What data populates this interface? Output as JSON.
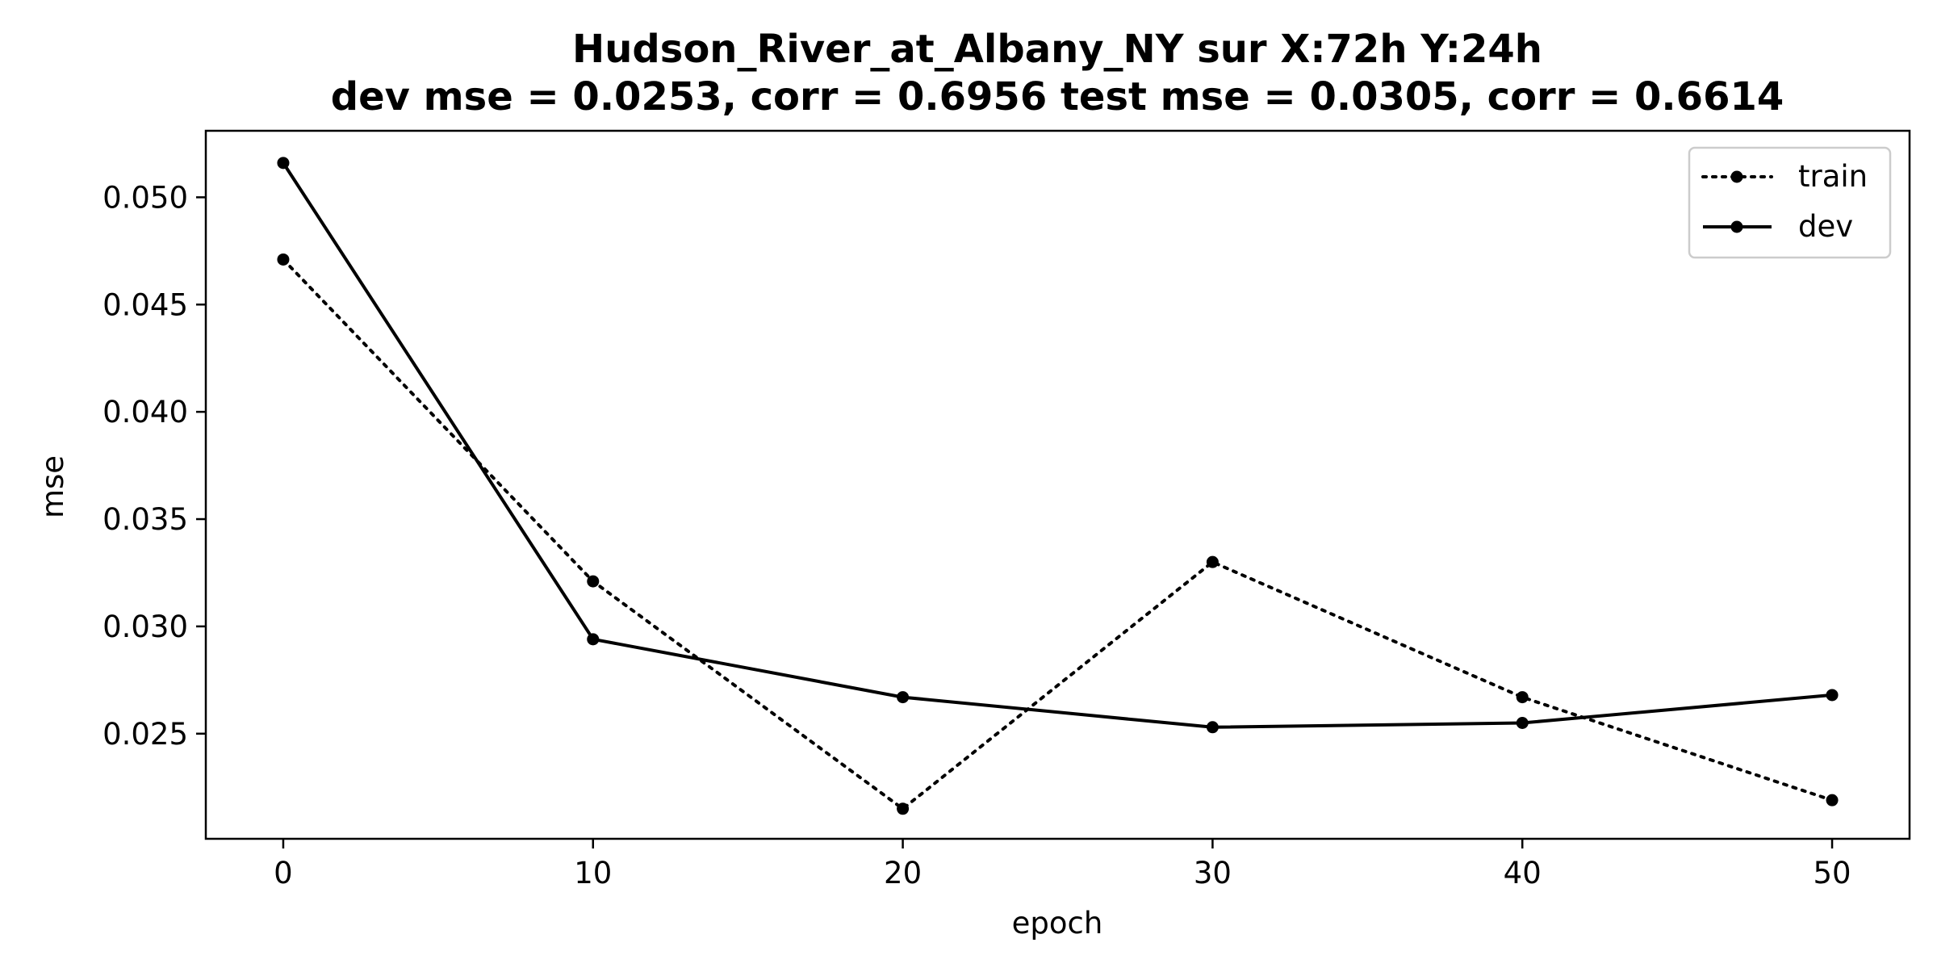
{
  "chart_data": {
    "type": "line",
    "title_line1": "Hudson_River_at_Albany_NY   sur   X:72h   Y:24h",
    "title_line2": "dev mse = 0.0253, corr = 0.6956   test mse = 0.0305, corr = 0.6614",
    "xlabel": "epoch",
    "ylabel": "mse",
    "x": [
      0,
      10,
      20,
      30,
      40,
      50
    ],
    "xlim": [
      -2.5,
      52.5
    ],
    "ylim": [
      0.0201,
      0.0531
    ],
    "xticks": [
      0,
      10,
      20,
      30,
      40,
      50
    ],
    "xtick_labels": [
      "0",
      "10",
      "20",
      "30",
      "40",
      "50"
    ],
    "yticks": [
      0.025,
      0.03,
      0.035,
      0.04,
      0.045,
      0.05
    ],
    "ytick_labels": [
      "0.025",
      "0.030",
      "0.035",
      "0.040",
      "0.045",
      "0.050"
    ],
    "grid": false,
    "legend_position": "top-right",
    "series": [
      {
        "name": "train",
        "style": "dotted",
        "color": "#000000",
        "values": [
          0.0471,
          0.0321,
          0.0215,
          0.033,
          0.0267,
          0.0219
        ]
      },
      {
        "name": "dev",
        "style": "solid",
        "color": "#000000",
        "values": [
          0.0516,
          0.0294,
          0.0267,
          0.0253,
          0.0255,
          0.0268
        ]
      }
    ]
  }
}
